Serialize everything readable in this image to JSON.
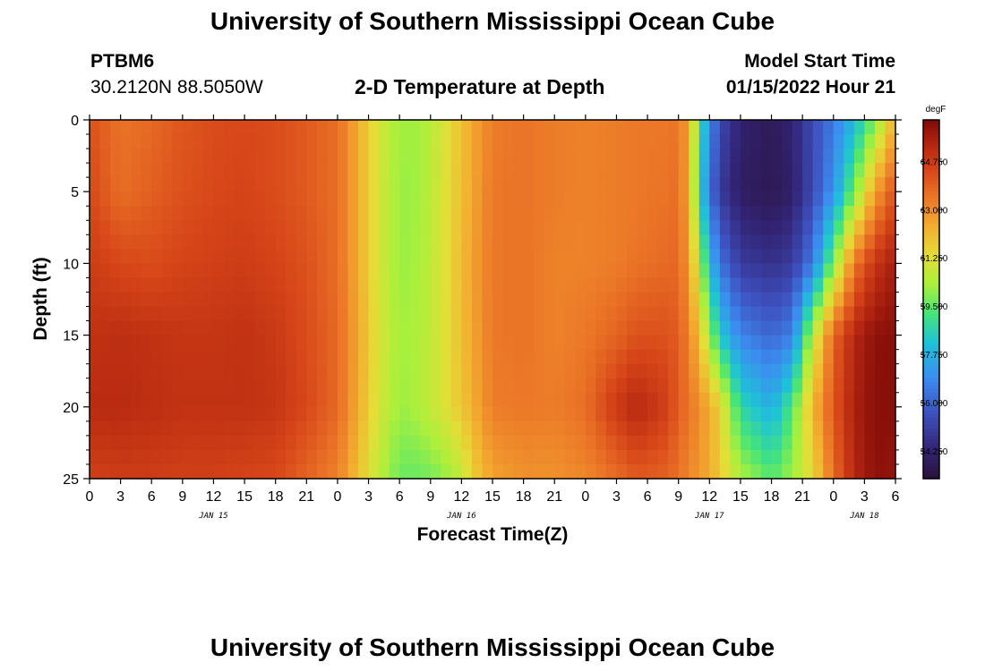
{
  "header": {
    "title": "University of Southern Mississippi Ocean Cube",
    "station": "PTBM6",
    "coords": "30.2120N  88.5050W",
    "subtitle": "2-D Temperature at Depth",
    "model_start_label": "Model Start Time",
    "model_start_value": "01/15/2022 Hour 21"
  },
  "footer": {
    "title": "University of Southern Mississippi Ocean Cube"
  },
  "chart_data": {
    "type": "heatmap",
    "xlabel": "Forecast Time(Z)",
    "ylabel": "Depth (ft)",
    "x_tick_labels": [
      "0",
      "3",
      "6",
      "9",
      "12",
      "15",
      "18",
      "21",
      "0",
      "3",
      "6",
      "9",
      "12",
      "15",
      "18",
      "21",
      "0",
      "3",
      "6",
      "9",
      "12",
      "15",
      "18",
      "21",
      "0",
      "3",
      "6"
    ],
    "date_labels": [
      {
        "label": "JAN 15",
        "hour": 12
      },
      {
        "label": "JAN 16",
        "hour": 36
      },
      {
        "label": "JAN 17",
        "hour": 60
      },
      {
        "label": "JAN 18",
        "hour": 75
      }
    ],
    "xlim_hours": [
      0,
      78
    ],
    "y_ticks": [
      0,
      5,
      10,
      15,
      20,
      25
    ],
    "ylim": [
      0,
      25
    ],
    "y_inverted": true,
    "colorbar": {
      "unit": "degF",
      "min": 53.25,
      "max": 66.25,
      "tick_labels": [
        "64.750",
        "63.000",
        "61.250",
        "59.500",
        "57.750",
        "56.000",
        "54.250"
      ],
      "tick_values": [
        64.75,
        63.0,
        61.25,
        59.5,
        57.75,
        56.0,
        54.25
      ],
      "colormap": "turbo"
    },
    "temperature_profiles": {
      "depths_ft": [
        0,
        5,
        10,
        15,
        20,
        25
      ],
      "columns": [
        {
          "hour": 0,
          "temps": [
            64.2,
            64.4,
            64.7,
            65.0,
            65.2,
            64.6
          ]
        },
        {
          "hour": 3,
          "temps": [
            63.5,
            63.6,
            64.4,
            65.1,
            65.2,
            64.7
          ]
        },
        {
          "hour": 6,
          "temps": [
            63.7,
            63.9,
            64.3,
            65.0,
            65.1,
            64.7
          ]
        },
        {
          "hour": 9,
          "temps": [
            64.1,
            64.2,
            64.5,
            64.9,
            65.0,
            64.6
          ]
        },
        {
          "hour": 12,
          "temps": [
            64.3,
            64.4,
            64.6,
            64.9,
            65.0,
            64.6
          ]
        },
        {
          "hour": 15,
          "temps": [
            64.4,
            64.5,
            64.7,
            65.0,
            65.0,
            64.5
          ]
        },
        {
          "hour": 18,
          "temps": [
            64.3,
            64.3,
            64.5,
            64.8,
            64.9,
            64.4
          ]
        },
        {
          "hour": 21,
          "temps": [
            64.0,
            64.0,
            64.2,
            64.3,
            64.4,
            63.8
          ]
        },
        {
          "hour": 24,
          "temps": [
            63.6,
            63.6,
            63.6,
            63.7,
            63.7,
            63.2
          ]
        },
        {
          "hour": 26,
          "temps": [
            62.4,
            62.4,
            62.4,
            62.5,
            62.4,
            62.0
          ]
        },
        {
          "hour": 28,
          "temps": [
            61.0,
            61.0,
            61.0,
            61.1,
            61.0,
            60.6
          ]
        },
        {
          "hour": 30,
          "temps": [
            60.2,
            60.1,
            60.1,
            60.2,
            60.1,
            59.6
          ]
        },
        {
          "hour": 32,
          "temps": [
            60.2,
            60.2,
            60.3,
            60.4,
            60.4,
            59.6
          ]
        },
        {
          "hour": 34,
          "temps": [
            60.9,
            61.0,
            61.0,
            61.0,
            61.0,
            59.9
          ]
        },
        {
          "hour": 36,
          "temps": [
            62.0,
            62.0,
            62.1,
            62.0,
            61.9,
            60.6
          ]
        },
        {
          "hour": 37,
          "temps": [
            62.5,
            62.5,
            62.6,
            62.5,
            62.3,
            61.6
          ]
        },
        {
          "hour": 39,
          "temps": [
            63.3,
            63.4,
            63.4,
            63.4,
            63.3,
            62.6
          ]
        },
        {
          "hour": 42,
          "temps": [
            63.5,
            63.5,
            63.5,
            63.5,
            63.4,
            62.9
          ]
        },
        {
          "hour": 45,
          "temps": [
            63.3,
            63.3,
            63.2,
            63.2,
            63.3,
            62.9
          ]
        },
        {
          "hour": 48,
          "temps": [
            63.2,
            63.2,
            63.2,
            63.4,
            63.6,
            63.1
          ]
        },
        {
          "hour": 51,
          "temps": [
            63.3,
            63.3,
            63.3,
            63.8,
            64.8,
            63.6
          ]
        },
        {
          "hour": 53,
          "temps": [
            63.4,
            63.4,
            63.5,
            64.2,
            65.3,
            64.0
          ]
        },
        {
          "hour": 56,
          "temps": [
            63.4,
            63.5,
            63.7,
            64.2,
            64.6,
            63.8
          ]
        },
        {
          "hour": 57,
          "temps": [
            63.5,
            63.6,
            63.7,
            63.9,
            63.9,
            63.5
          ]
        },
        {
          "hour": 58,
          "temps": [
            62.5,
            62.4,
            62.7,
            63.2,
            63.5,
            63.1
          ]
        },
        {
          "hour": 59,
          "temps": [
            59.2,
            58.8,
            60.5,
            62.0,
            63.0,
            62.8
          ]
        },
        {
          "hour": 60,
          "temps": [
            57.0,
            56.4,
            58.1,
            60.3,
            62.4,
            62.4
          ]
        },
        {
          "hour": 61,
          "temps": [
            55.4,
            55.0,
            56.4,
            58.4,
            61.6,
            61.8
          ]
        },
        {
          "hour": 63,
          "temps": [
            54.2,
            54.0,
            55.0,
            56.7,
            58.7,
            60.4
          ]
        },
        {
          "hour": 66,
          "temps": [
            53.8,
            53.7,
            54.7,
            56.1,
            57.7,
            59.4
          ]
        },
        {
          "hour": 68,
          "temps": [
            54.3,
            54.1,
            55.0,
            56.6,
            59.3,
            60.2
          ]
        },
        {
          "hour": 70,
          "temps": [
            55.4,
            55.4,
            56.5,
            60.6,
            62.2,
            61.4
          ]
        },
        {
          "hour": 72,
          "temps": [
            56.5,
            57.1,
            59.9,
            63.8,
            64.1,
            63.6
          ]
        },
        {
          "hour": 74,
          "temps": [
            57.9,
            59.7,
            63.4,
            65.3,
            65.5,
            65.3
          ]
        },
        {
          "hour": 76,
          "temps": [
            59.8,
            62.6,
            64.9,
            66.0,
            66.1,
            66.0
          ]
        },
        {
          "hour": 78,
          "temps": [
            62.4,
            64.2,
            65.6,
            66.1,
            66.1,
            65.9
          ]
        }
      ]
    }
  }
}
